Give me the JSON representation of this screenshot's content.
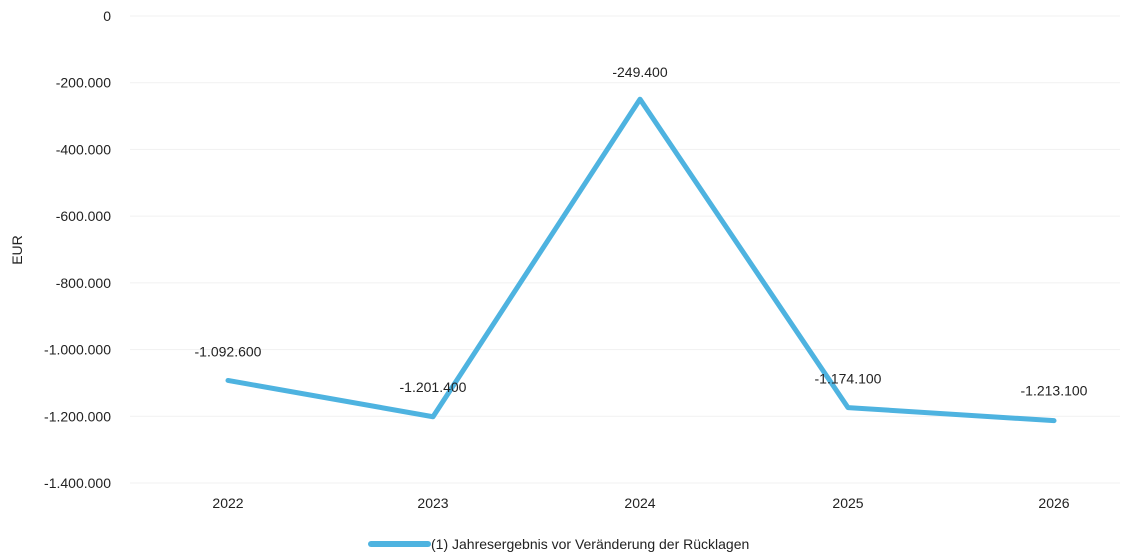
{
  "chart_data": {
    "type": "line",
    "title": "",
    "xlabel": "",
    "ylabel": "EUR",
    "categories": [
      "2022",
      "2023",
      "2024",
      "2025",
      "2026"
    ],
    "series": [
      {
        "name": "(1) Jahresergebnis vor Veränderung der Rücklagen",
        "values": [
          -1092600,
          -1201400,
          -249400,
          -1174100,
          -1213100
        ],
        "labels": [
          "-1.092.600",
          "-1.201.400",
          "-249.400",
          "-1.174.100",
          "-1.213.100"
        ],
        "color": "#4eb3e0"
      }
    ],
    "ylim": [
      -1400000,
      0
    ],
    "yticks": [
      0,
      -200000,
      -400000,
      -600000,
      -800000,
      -1000000,
      -1200000,
      -1400000
    ],
    "ytick_labels": [
      "0",
      "-200.000",
      "-400.000",
      "-600.000",
      "-800.000",
      "-1.000.000",
      "-1.200.000",
      "-1.400.000"
    ],
    "grid": true,
    "legend": "bottom-center"
  }
}
